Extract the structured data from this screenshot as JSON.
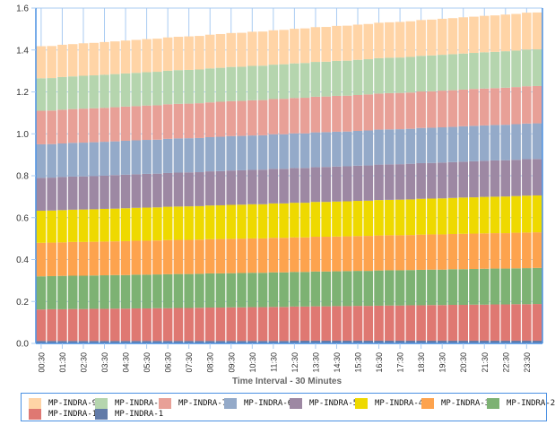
{
  "chart_data": {
    "type": "bar",
    "stacked": true,
    "title": "",
    "xlabel": "Time Interval - 30 Minutes",
    "ylabel": "",
    "ylim": [
      0,
      1.6
    ],
    "yticks": [
      "0.0",
      "0.2",
      "0.4",
      "0.6",
      "0.8",
      "1.0",
      "1.2",
      "1.4",
      "1.6"
    ],
    "ytick_values": [
      0,
      0.2,
      0.4,
      0.6,
      0.8,
      1.0,
      1.2,
      1.4,
      1.6
    ],
    "grid": true,
    "legend_position": "bottom",
    "categories": [
      "00:30",
      "01:00",
      "01:30",
      "02:00",
      "02:30",
      "03:00",
      "03:30",
      "04:00",
      "04:30",
      "05:00",
      "05:30",
      "06:00",
      "06:30",
      "07:00",
      "07:30",
      "08:00",
      "08:30",
      "09:00",
      "09:30",
      "10:00",
      "10:30",
      "11:00",
      "11:30",
      "12:00",
      "12:30",
      "13:00",
      "13:30",
      "14:00",
      "14:30",
      "15:00",
      "15:30",
      "16:00",
      "16:30",
      "17:00",
      "17:30",
      "18:00",
      "18:30",
      "19:00",
      "19:30",
      "20:00",
      "20:30",
      "21:00",
      "21:30",
      "22:00",
      "22:30",
      "23:00",
      "23:30",
      "24:00"
    ],
    "xtick_labels": [
      "00:30",
      "01:30",
      "02:30",
      "03:30",
      "04:30",
      "05:30",
      "06:30",
      "07:30",
      "08:30",
      "09:30",
      "10:30",
      "11:30",
      "12:30",
      "13:30",
      "14:30",
      "15:30",
      "16:30",
      "17:30",
      "18:30",
      "19:30",
      "20:30",
      "21:30",
      "22:30",
      "23:30"
    ],
    "series": [
      {
        "name": "MP-INDRA-1",
        "color": "#627BA8",
        "start": 0.012,
        "end": 0.013
      },
      {
        "name": "MP-INDRA-10",
        "color": "#DF7872",
        "start": 0.15,
        "end": 0.175
      },
      {
        "name": "MP-INDRA-2",
        "color": "#7DB273",
        "start": 0.158,
        "end": 0.172
      },
      {
        "name": "MP-INDRA-3",
        "color": "#FDA34E",
        "start": 0.16,
        "end": 0.17
      },
      {
        "name": "MP-INDRA-4",
        "color": "#EED900",
        "start": 0.153,
        "end": 0.176
      },
      {
        "name": "MP-INDRA-5",
        "color": "#9D88A3",
        "start": 0.157,
        "end": 0.174
      },
      {
        "name": "MP-INDRA-6",
        "color": "#94AAC9",
        "start": 0.16,
        "end": 0.17
      },
      {
        "name": "MP-INDRA-7",
        "color": "#E8A097",
        "start": 0.16,
        "end": 0.178
      },
      {
        "name": "MP-INDRA-8",
        "color": "#B5D5AE",
        "start": 0.155,
        "end": 0.175
      },
      {
        "name": "MP-INDRA-9",
        "color": "#FFD4A6",
        "start": 0.153,
        "end": 0.176
      }
    ],
    "legend_order": [
      "MP-INDRA-9",
      "MP-INDRA-8",
      "MP-INDRA-7",
      "MP-INDRA-6",
      "MP-INDRA-5",
      "MP-INDRA-4",
      "MP-INDRA-3",
      "MP-INDRA-2",
      "MP-INDRA-10",
      "MP-INDRA-1"
    ],
    "colors": {
      "axis": "#4a90e2",
      "grid": "#a9cbf2",
      "legend_border": "#4a90e2"
    }
  }
}
